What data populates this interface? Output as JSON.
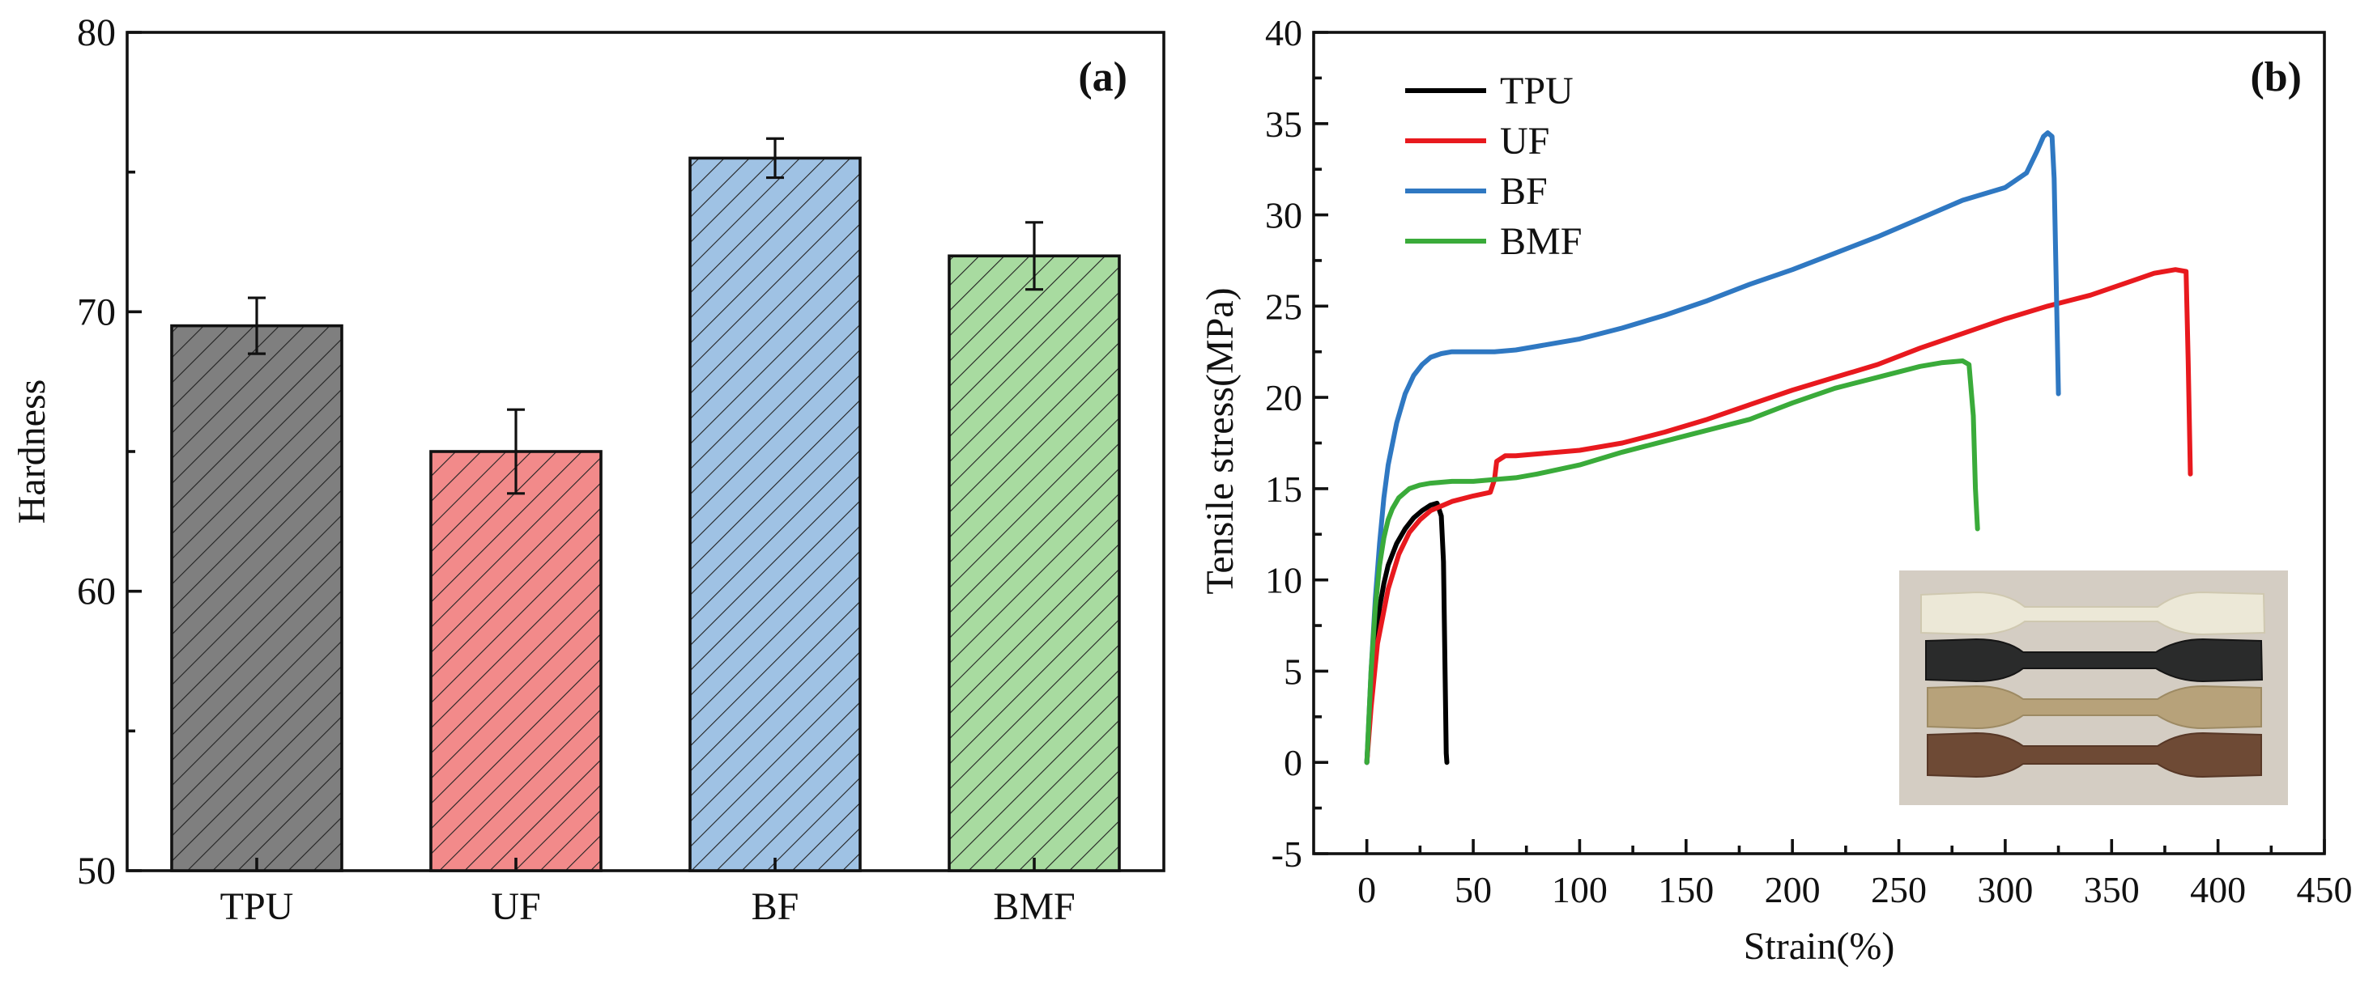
{
  "chart_data": [
    {
      "type": "bar",
      "panel_label": "(a)",
      "title": "",
      "xlabel": "",
      "ylabel": "Hardness",
      "ylim": [
        50,
        80
      ],
      "yticks": [
        50,
        60,
        70,
        80
      ],
      "categories": [
        "TPU",
        "UF",
        "BF",
        "BMF"
      ],
      "values": [
        69.5,
        65.0,
        75.5,
        72.0
      ],
      "errors": [
        1.0,
        1.5,
        0.7,
        1.2
      ],
      "colors": [
        "#7f7f7f",
        "#f28a8a",
        "#9fc2e4",
        "#a8dba0"
      ],
      "fill_pattern": "diagonal hatch"
    },
    {
      "type": "line",
      "panel_label": "(b)",
      "title": "",
      "xlabel": "Strain(%)",
      "ylabel": "Tensile stress(MPa)",
      "xlim": [
        -25,
        450
      ],
      "ylim": [
        -5,
        40
      ],
      "xticks": [
        0,
        50,
        100,
        150,
        200,
        250,
        300,
        350,
        400,
        450
      ],
      "yticks": [
        -5,
        0,
        5,
        10,
        15,
        20,
        25,
        30,
        35,
        40
      ],
      "legend_position": "top-left",
      "inset": "photo of four dumbbell tensile specimens",
      "series": [
        {
          "name": "TPU",
          "legend_label": " TPU",
          "color": "#000000",
          "x": [
            0,
            1,
            2,
            4,
            6,
            8,
            10,
            14,
            18,
            22,
            26,
            30,
            33,
            35,
            36,
            36.5,
            37,
            37.3,
            37.6
          ],
          "y": [
            0,
            2,
            4,
            6.5,
            8.5,
            9.8,
            10.8,
            12,
            12.8,
            13.4,
            13.8,
            14.1,
            14.2,
            13.5,
            11,
            7,
            3,
            0.5,
            0
          ]
        },
        {
          "name": "UF",
          "legend_label": "UF",
          "color": "#e8191e",
          "x": [
            0,
            2,
            5,
            10,
            15,
            20,
            25,
            30,
            40,
            50,
            58,
            60,
            61,
            65,
            70,
            80,
            100,
            120,
            140,
            160,
            180,
            200,
            220,
            240,
            260,
            280,
            300,
            320,
            340,
            360,
            370,
            380,
            385,
            386,
            387
          ],
          "y": [
            0,
            3,
            6.5,
            9.5,
            11.4,
            12.6,
            13.3,
            13.8,
            14.3,
            14.6,
            14.8,
            15.5,
            16.5,
            16.8,
            16.8,
            16.9,
            17.1,
            17.5,
            18.1,
            18.8,
            19.6,
            20.4,
            21.1,
            21.8,
            22.7,
            23.5,
            24.3,
            25.0,
            25.6,
            26.4,
            26.8,
            27.0,
            26.9,
            22,
            15.8
          ]
        },
        {
          "name": "BF",
          "legend_label": "BF",
          "color": "#2f78c2",
          "x": [
            0,
            2,
            4,
            6,
            8,
            10,
            14,
            18,
            22,
            26,
            30,
            35,
            40,
            50,
            60,
            70,
            80,
            90,
            100,
            120,
            140,
            160,
            180,
            200,
            220,
            240,
            260,
            280,
            300,
            310,
            315,
            318,
            320,
            322,
            323,
            324,
            325
          ],
          "y": [
            0,
            5,
            9,
            12,
            14.5,
            16.3,
            18.6,
            20.2,
            21.2,
            21.8,
            22.2,
            22.4,
            22.5,
            22.5,
            22.5,
            22.6,
            22.8,
            23.0,
            23.2,
            23.8,
            24.5,
            25.3,
            26.2,
            27.0,
            27.9,
            28.8,
            29.8,
            30.8,
            31.5,
            32.3,
            33.5,
            34.3,
            34.5,
            34.3,
            32,
            26,
            20.2
          ]
        },
        {
          "name": "BMF",
          "legend_label": "BMF",
          "color": "#3aab3a",
          "x": [
            0,
            2,
            4,
            6,
            8,
            10,
            12,
            15,
            20,
            25,
            30,
            40,
            50,
            60,
            70,
            80,
            100,
            120,
            140,
            160,
            180,
            200,
            220,
            240,
            260,
            270,
            280,
            283,
            285,
            286,
            287
          ],
          "y": [
            0,
            5,
            8.5,
            10.8,
            12.3,
            13.3,
            13.9,
            14.5,
            15.0,
            15.2,
            15.3,
            15.4,
            15.4,
            15.5,
            15.6,
            15.8,
            16.3,
            17.0,
            17.6,
            18.2,
            18.8,
            19.7,
            20.5,
            21.1,
            21.7,
            21.9,
            22.0,
            21.8,
            19,
            15,
            12.8
          ]
        }
      ]
    }
  ]
}
